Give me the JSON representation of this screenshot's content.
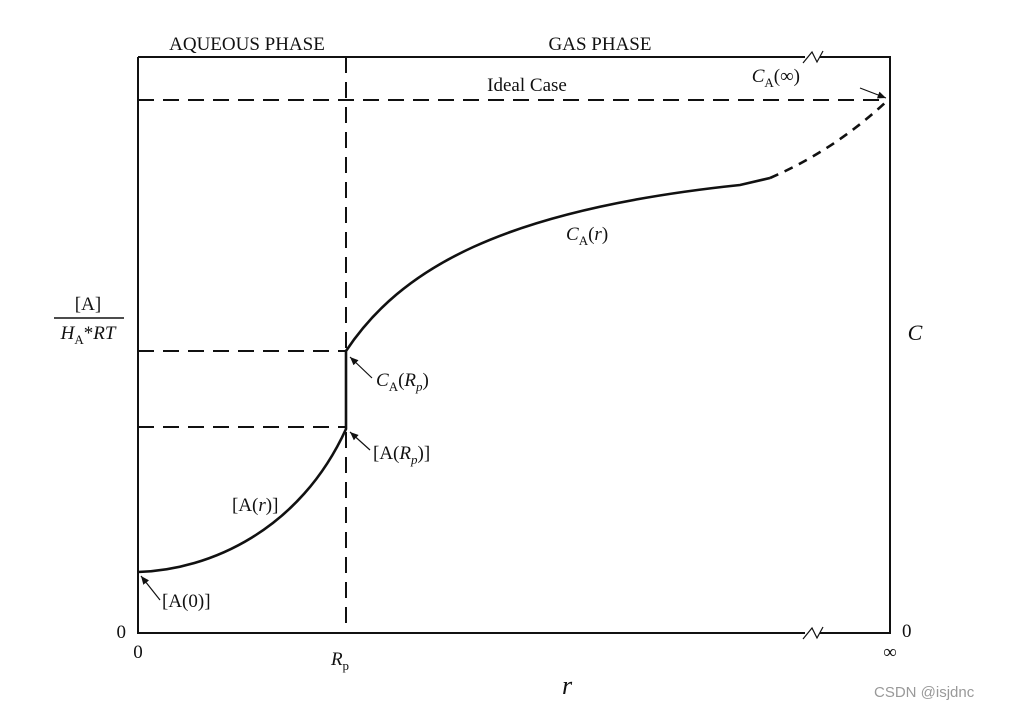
{
  "header": {
    "aqueous": "AQUEOUS PHASE",
    "gas": "GAS PHASE"
  },
  "ideal_case": "Ideal Case",
  "left_axis": {
    "numerator": "[A]",
    "denominator": [
      "H",
      "A",
      "*",
      "RT"
    ],
    "zero": "0"
  },
  "right_axis": {
    "label": "C",
    "zero": "0"
  },
  "x_axis": {
    "zero": "0",
    "rp": [
      "R",
      "p"
    ],
    "infinity": "∞",
    "title": "r"
  },
  "labels": {
    "ca_inf": [
      "C",
      "A",
      "(∞)"
    ],
    "ca_r": [
      "C",
      "A",
      "(",
      "r",
      ")"
    ],
    "ca_rp": [
      "C",
      "A",
      "(",
      "R",
      "p",
      ")"
    ],
    "a_rp": [
      "[A(",
      "R",
      "p",
      ")]"
    ],
    "a_r": [
      "[A(",
      "r",
      ")]"
    ],
    "a_0": "[A(0)]"
  },
  "watermark": "CSDN @isjdnc"
}
